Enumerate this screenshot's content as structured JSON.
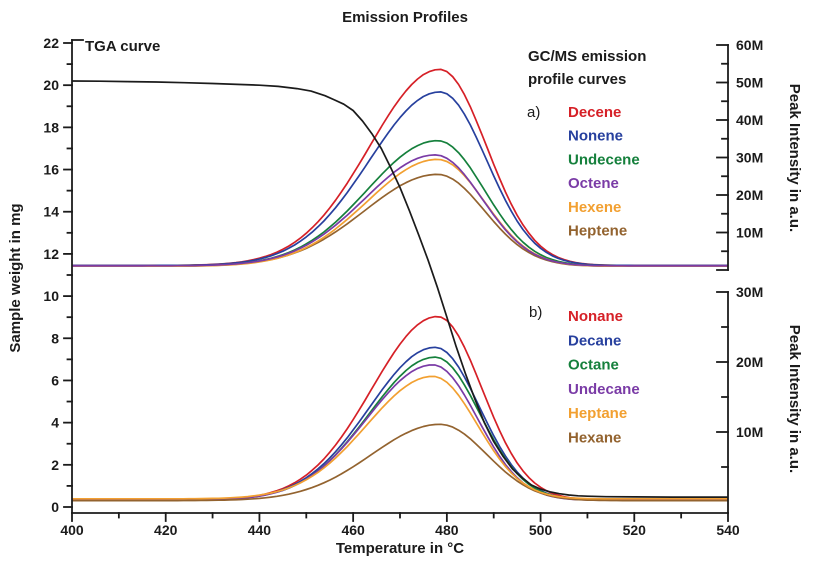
{
  "title": "Emission Profiles",
  "annotations": {
    "tga_label": "TGA curve",
    "gcms_line1": "GC/MS emission",
    "gcms_line2": "profile curves",
    "panel_a_marker": "a)",
    "panel_b_marker": "b)"
  },
  "axes": {
    "x": {
      "label": "Temperature in °C",
      "min": 400,
      "max": 540,
      "major_ticks": [
        400,
        420,
        440,
        460,
        480,
        500,
        520,
        540
      ],
      "minor_step": 10
    },
    "y_left": {
      "label": "Sample weight in mg",
      "min": 0,
      "max": 22,
      "major_step": 2,
      "minor_step": 1,
      "tick_labels": [
        "0",
        "2",
        "4",
        "6",
        "8",
        "10",
        "12",
        "14",
        "16",
        "18",
        "20",
        "22"
      ]
    },
    "y_right_top": {
      "label": "Peak Intensity in a.u.",
      "min": 0,
      "max_value": 60,
      "major_step": 10,
      "minor_step": 5,
      "tick_labels": [
        "10M",
        "20M",
        "30M",
        "40M",
        "50M",
        "60M"
      ]
    },
    "y_right_bottom": {
      "label": "Peak Intensity in a.u.",
      "min": 0,
      "max_value": 30,
      "major_step": 10,
      "minor_step": 5,
      "tick_labels": [
        "10M",
        "20M",
        "30M"
      ]
    }
  },
  "legends": {
    "a": {
      "x": 568,
      "y_start": 117,
      "step": 23.7,
      "items": [
        "Decene",
        "Nonene",
        "Undecene",
        "Octene",
        "Hexene",
        "Heptene"
      ]
    },
    "b": {
      "x": 568,
      "y_start": 321,
      "step": 24.3,
      "items": [
        "Nonane",
        "Decane",
        "Octane",
        "Undecane",
        "Heptane",
        "Hexane"
      ]
    }
  },
  "colors": {
    "axis": "#1b1b1b",
    "background": "#ffffff",
    "red": "#d62027",
    "blue": "#27409e",
    "green": "#15803c",
    "purple": "#7a3ba6",
    "orange": "#f2a031",
    "brown": "#93632f",
    "black": "#1b1b1b"
  },
  "chart_data": {
    "type": "line",
    "title": "Emission Profiles",
    "xlabel": "Temperature in °C",
    "x_range": [
      400,
      540
    ],
    "grid": false,
    "sample_temps_C": [
      400,
      410,
      420,
      430,
      440,
      450,
      460,
      470,
      480,
      490,
      500,
      510,
      520,
      530,
      540
    ],
    "series": [
      {
        "name": "Decene",
        "panel": "a",
        "axis": "right_top",
        "unit": "M a.u.",
        "color": "#d62027",
        "peak_temp": 478.5,
        "peak_value": 53.5,
        "baseline": 1.2,
        "sigma_left": 15,
        "sigma_right": 10,
        "sampled_values_M": [
          1.2,
          1.2,
          1.2,
          1.5,
          3.3,
          10.4,
          26.7,
          46.6,
          52.9,
          26.7,
          5.8,
          1.5,
          1.2,
          1.2,
          1.2
        ]
      },
      {
        "name": "Nonene",
        "panel": "a",
        "axis": "right_top",
        "unit": "M a.u.",
        "color": "#27409e",
        "peak_temp": 478.5,
        "peak_value": 47.5,
        "baseline": 1.2,
        "sigma_left": 15,
        "sigma_right": 10,
        "sampled_values_M": [
          1.2,
          1.2,
          1.2,
          1.5,
          3.1,
          9.3,
          23.7,
          41.4,
          47.0,
          23.7,
          5.3,
          1.5,
          1.2,
          1.2,
          1.2
        ]
      },
      {
        "name": "Undecene",
        "panel": "a",
        "axis": "right_top",
        "unit": "M a.u.",
        "color": "#15803c",
        "peak_temp": 478,
        "peak_value": 34.5,
        "baseline": 1.1,
        "sigma_left": 15,
        "sigma_right": 10,
        "sampled_values_M": [
          1.1,
          1.1,
          1.1,
          1.3,
          2.4,
          7.0,
          17.4,
          30.1,
          34.1,
          17.4,
          4.1,
          1.3,
          1.1,
          1.1,
          1.1
        ]
      },
      {
        "name": "Heptene",
        "panel": "a",
        "axis": "right_top",
        "unit": "M a.u.",
        "color": "#93632f",
        "peak_temp": 478,
        "peak_value": 25.5,
        "baseline": 1.0,
        "sigma_left": 15.5,
        "sigma_right": 10,
        "sampled_values_M": [
          1.0,
          1.0,
          1.0,
          1.1,
          2.0,
          5.3,
          12.9,
          22.3,
          25.2,
          12.9,
          3.2,
          1.1,
          1.0,
          1.0,
          1.0
        ]
      },
      {
        "name": "Hexene",
        "panel": "a",
        "axis": "right_top",
        "unit": "M a.u.",
        "color": "#f2a031",
        "peak_temp": 478,
        "peak_value": 29.5,
        "baseline": 1.0,
        "sigma_left": 15,
        "sigma_right": 10,
        "sampled_values_M": [
          1.0,
          1.0,
          1.0,
          1.2,
          2.2,
          6.0,
          14.9,
          25.7,
          29.2,
          14.9,
          3.5,
          1.2,
          1.0,
          1.0,
          1.0
        ]
      },
      {
        "name": "Octene",
        "panel": "a",
        "axis": "right_top",
        "unit": "M a.u.",
        "color": "#7a3ba6",
        "peak_temp": 477.5,
        "peak_value": 30.7,
        "baseline": 1.1,
        "sigma_left": 15,
        "sigma_right": 10,
        "sampled_values_M": [
          1.1,
          1.1,
          1.1,
          1.3,
          2.3,
          6.3,
          15.5,
          26.8,
          30.3,
          15.5,
          3.7,
          1.3,
          1.1,
          1.1,
          1.1
        ]
      },
      {
        "name": "Nonane",
        "panel": "b",
        "axis": "right_bottom",
        "unit": "M a.u.",
        "color": "#d62027",
        "peak_temp": 478,
        "peak_value": 26.5,
        "baseline": 0.3,
        "sigma_left": 14,
        "sigma_right": 9.5,
        "sampled_values_M": [
          0.3,
          0.3,
          0.3,
          0.4,
          1.0,
          3.8,
          11.8,
          22.6,
          25.9,
          12.1,
          2.1,
          0.4,
          0.3,
          0.3,
          0.3
        ]
      },
      {
        "name": "Decane",
        "panel": "b",
        "axis": "right_bottom",
        "unit": "M a.u.",
        "color": "#27409e",
        "peak_temp": 477.5,
        "peak_value": 22.1,
        "baseline": 0.3,
        "sigma_left": 14,
        "sigma_right": 9.5,
        "sampled_values_M": [
          0.3,
          0.3,
          0.3,
          0.4,
          0.8,
          3.2,
          9.8,
          18.8,
          21.6,
          10.1,
          1.8,
          0.4,
          0.3,
          0.3,
          0.3
        ]
      },
      {
        "name": "Octane",
        "panel": "b",
        "axis": "right_bottom",
        "unit": "M a.u.",
        "color": "#15803c",
        "peak_temp": 477.5,
        "peak_value": 20.7,
        "baseline": 0.3,
        "sigma_left": 14,
        "sigma_right": 9.5,
        "sampled_values_M": [
          0.3,
          0.3,
          0.3,
          0.4,
          0.8,
          3.1,
          9.2,
          17.6,
          20.3,
          9.5,
          1.7,
          0.4,
          0.3,
          0.3,
          0.3
        ]
      },
      {
        "name": "Undecane",
        "panel": "b",
        "axis": "right_bottom",
        "unit": "M a.u.",
        "color": "#7a3ba6",
        "peak_temp": 477,
        "peak_value": 19.6,
        "baseline": 0.25,
        "sigma_left": 14,
        "sigma_right": 9.5,
        "sampled_values_M": [
          0.25,
          0.25,
          0.25,
          0.3,
          0.7,
          2.9,
          8.7,
          16.6,
          19.1,
          8.9,
          1.6,
          0.3,
          0.25,
          0.25,
          0.25
        ]
      },
      {
        "name": "Hexane",
        "panel": "b",
        "axis": "right_bottom",
        "unit": "M a.u.",
        "color": "#93632f",
        "peak_temp": 478.5,
        "peak_value": 11.1,
        "baseline": 0.2,
        "sigma_left": 14.5,
        "sigma_right": 10,
        "sampled_values_M": [
          0.2,
          0.2,
          0.2,
          0.3,
          0.5,
          1.7,
          5.0,
          9.5,
          10.9,
          5.1,
          0.9,
          0.2,
          0.2,
          0.2,
          0.2
        ]
      },
      {
        "name": "Heptane",
        "panel": "b",
        "axis": "right_bottom",
        "unit": "M a.u.",
        "color": "#f2a031",
        "peak_temp": 477,
        "peak_value": 17.95,
        "baseline": 0.45,
        "sigma_left": 14,
        "sigma_right": 9.5,
        "sampled_values_M": [
          0.45,
          0.45,
          0.45,
          0.5,
          0.9,
          2.8,
          8.1,
          15.3,
          17.6,
          8.3,
          1.6,
          0.5,
          0.45,
          0.45,
          0.45
        ]
      },
      {
        "name": "TGA",
        "panel": "tga",
        "axis": "left",
        "unit": "mg",
        "color": "#1b1b1b",
        "start_mg": 20.2,
        "final_mg": 0.47,
        "inflection_temp": 477,
        "points": [
          [
            400,
            20.2
          ],
          [
            406,
            20.19
          ],
          [
            412,
            20.17
          ],
          [
            418,
            20.15
          ],
          [
            424,
            20.12
          ],
          [
            430,
            20.08
          ],
          [
            436,
            20.03
          ],
          [
            440,
            20.0
          ],
          [
            444,
            19.94
          ],
          [
            448,
            19.84
          ],
          [
            451,
            19.72
          ],
          [
            454,
            19.5
          ],
          [
            456,
            19.3
          ],
          [
            458,
            19.1
          ],
          [
            460,
            18.8
          ],
          [
            462,
            18.3
          ],
          [
            464,
            17.7
          ],
          [
            466,
            17.0
          ],
          [
            468,
            16.1
          ],
          [
            470,
            15.15
          ],
          [
            472,
            14.05
          ],
          [
            474,
            12.9
          ],
          [
            476,
            11.7
          ],
          [
            478,
            10.4
          ],
          [
            480,
            9.0
          ],
          [
            482,
            7.6
          ],
          [
            484,
            6.3
          ],
          [
            486,
            5.1
          ],
          [
            488,
            4.0
          ],
          [
            490,
            3.1
          ],
          [
            492,
            2.4
          ],
          [
            494,
            1.8
          ],
          [
            496,
            1.4
          ],
          [
            498,
            1.05
          ],
          [
            500,
            0.85
          ],
          [
            502,
            0.72
          ],
          [
            504,
            0.63
          ],
          [
            506,
            0.57
          ],
          [
            508,
            0.53
          ],
          [
            510,
            0.51
          ],
          [
            514,
            0.49
          ],
          [
            520,
            0.48
          ],
          [
            528,
            0.47
          ],
          [
            540,
            0.47
          ]
        ],
        "sampled_values_mg": [
          20.2,
          20.2,
          20.15,
          20.1,
          20.0,
          19.8,
          18.8,
          15.15,
          9.0,
          3.1,
          0.85,
          0.51,
          0.48,
          0.47,
          0.47
        ]
      }
    ]
  }
}
